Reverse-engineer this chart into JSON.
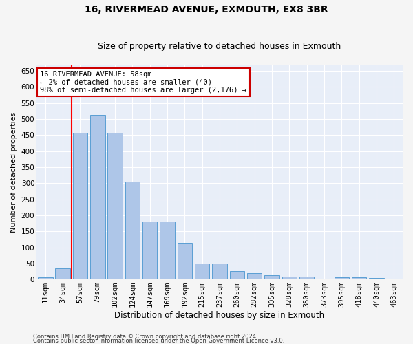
{
  "title1": "16, RIVERMEAD AVENUE, EXMOUTH, EX8 3BR",
  "title2": "Size of property relative to detached houses in Exmouth",
  "xlabel": "Distribution of detached houses by size in Exmouth",
  "ylabel": "Number of detached properties",
  "categories": [
    "11sqm",
    "34sqm",
    "57sqm",
    "79sqm",
    "102sqm",
    "124sqm",
    "147sqm",
    "169sqm",
    "192sqm",
    "215sqm",
    "237sqm",
    "260sqm",
    "282sqm",
    "305sqm",
    "328sqm",
    "350sqm",
    "373sqm",
    "395sqm",
    "418sqm",
    "440sqm",
    "463sqm"
  ],
  "values": [
    7,
    35,
    457,
    513,
    457,
    305,
    180,
    180,
    115,
    50,
    50,
    27,
    20,
    14,
    9,
    9,
    3,
    7,
    7,
    5,
    3
  ],
  "bar_color": "#aec6e8",
  "bar_edge_color": "#5a9fd4",
  "red_line_index": 2,
  "ylim": [
    0,
    670
  ],
  "yticks": [
    0,
    50,
    100,
    150,
    200,
    250,
    300,
    350,
    400,
    450,
    500,
    550,
    600,
    650
  ],
  "annotation_line1": "16 RIVERMEAD AVENUE: 58sqm",
  "annotation_line2": "← 2% of detached houses are smaller (40)",
  "annotation_line3": "98% of semi-detached houses are larger (2,176) →",
  "annotation_box_color": "#ffffff",
  "annotation_box_edge_color": "#cc0000",
  "footnote1": "Contains HM Land Registry data © Crown copyright and database right 2024.",
  "footnote2": "Contains public sector information licensed under the Open Government Licence v3.0.",
  "plot_bg_color": "#e8eef8",
  "grid_color": "#ffffff",
  "fig_bg_color": "#f5f5f5",
  "title1_fontsize": 10,
  "title2_fontsize": 9,
  "xlabel_fontsize": 8.5,
  "ylabel_fontsize": 8,
  "tick_fontsize": 7.5,
  "annot_fontsize": 7.5,
  "footnote_fontsize": 6
}
